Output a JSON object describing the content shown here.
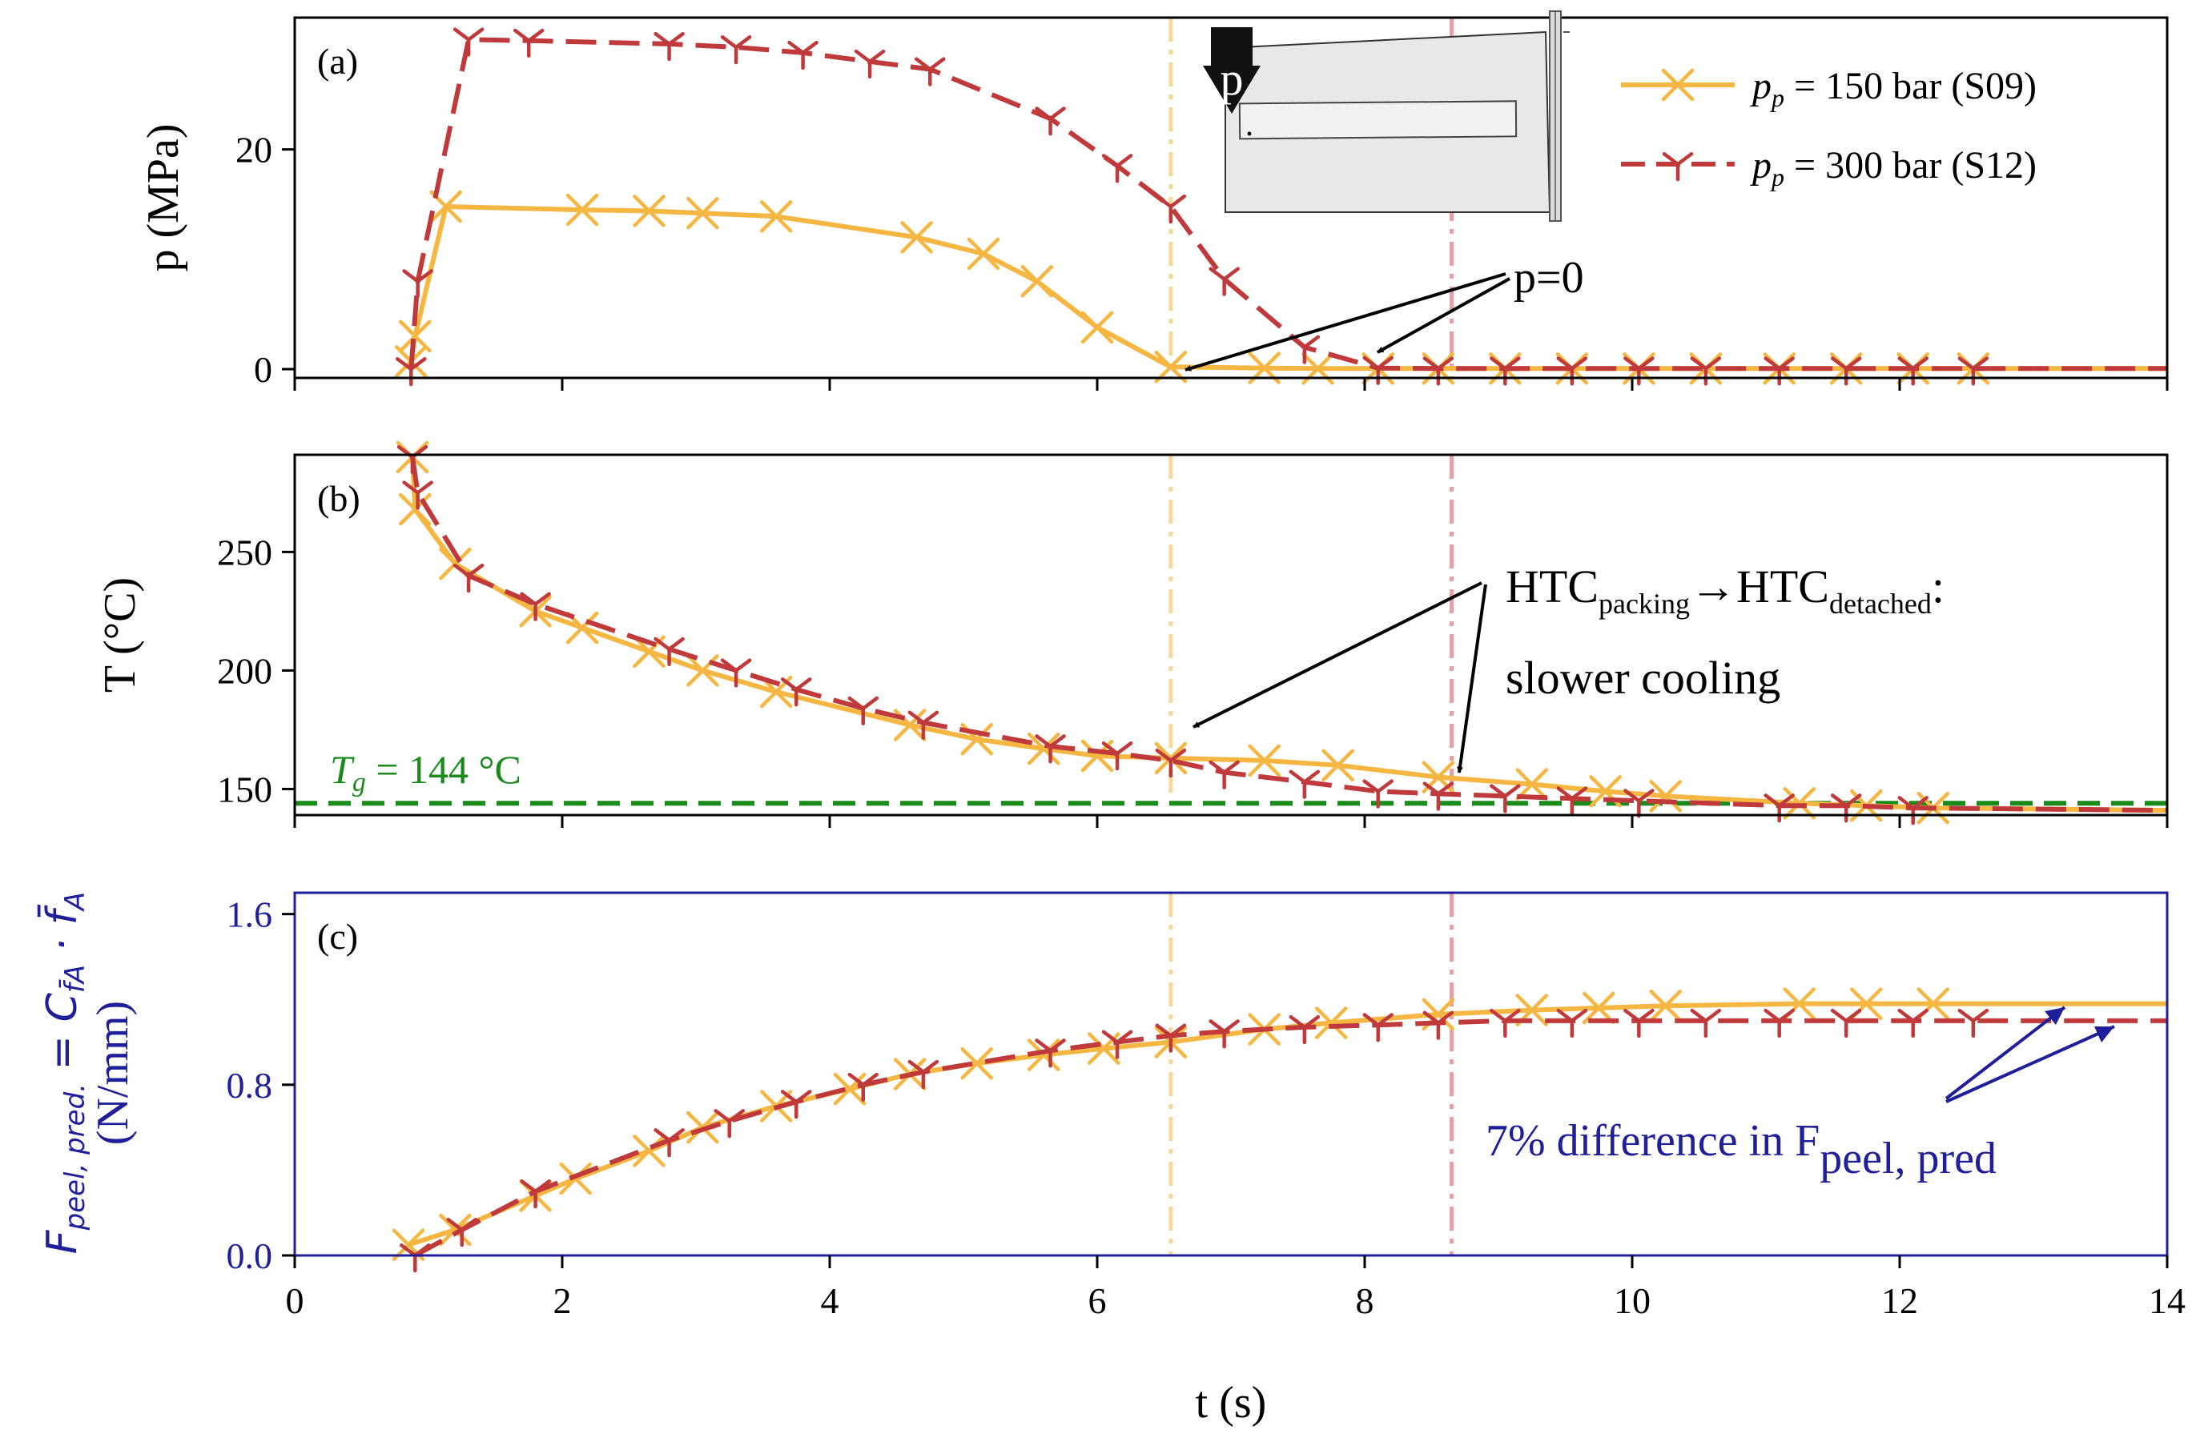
{
  "colors": {
    "s09": "#f5b642",
    "s12": "#c0393b",
    "tg": "#1a8a1a",
    "navy": "#1f1f9c",
    "axis": "#000000",
    "s09_vline": "#f8d79a",
    "s12_vline": "#e6a0a4"
  },
  "chart_data": [
    {
      "type": "line",
      "panel_label": "(a)",
      "ylabel": "p (MPa)",
      "xlabel": "",
      "xlim": [
        0,
        14
      ],
      "ylim": [
        -0.8,
        32
      ],
      "yticks": [
        0,
        20
      ],
      "ytick_labels": [
        "0",
        "20"
      ],
      "xticks": [
        0,
        2,
        4,
        6,
        8,
        10,
        12,
        14
      ],
      "legend": {
        "position": "top-right",
        "items": [
          {
            "series": "S09",
            "prefix": "p",
            "sub": "p",
            "text": " = 150 bar (S09)"
          },
          {
            "series": "S12",
            "prefix": "p",
            "sub": "p",
            "text": " = 300 bar (S12)"
          }
        ]
      },
      "inset": {
        "label": "p"
      },
      "annotation": {
        "text": "p=0",
        "targets": [
          [
            6.6,
            0
          ],
          [
            8.0,
            0
          ]
        ]
      },
      "series": [
        {
          "name": "p_p = 150 bar (S09)",
          "key": "S09",
          "style": "solid",
          "marker": "x",
          "x": [
            0.87,
            0.9,
            1.13,
            2.15,
            2.65,
            3.05,
            3.6,
            4.65,
            5.15,
            5.55,
            6.0,
            6.55,
            7.25,
            7.65,
            8.1,
            8.55,
            9.05,
            9.55,
            10.05,
            10.55,
            11.1,
            11.6,
            12.1,
            12.55,
            14.0
          ],
          "y": [
            0.7,
            3.0,
            14.8,
            14.5,
            14.4,
            14.2,
            13.9,
            12.0,
            10.5,
            8.0,
            3.8,
            0.2,
            0.1,
            0.05,
            0.05,
            0.05,
            0.05,
            0.05,
            0.05,
            0.05,
            0.05,
            0.05,
            0.05,
            0.05,
            0.05
          ],
          "markers_x": [
            0.87,
            0.9,
            1.13,
            2.15,
            2.65,
            3.05,
            3.6,
            4.65,
            5.15,
            5.55,
            6.0,
            6.55,
            7.25,
            7.65,
            8.1,
            8.55,
            9.05,
            9.55,
            10.05,
            10.55,
            11.1,
            11.6,
            12.1,
            12.55
          ]
        },
        {
          "name": "p_p = 300 bar (S12)",
          "key": "S12",
          "style": "dashed",
          "marker": "tri_down",
          "x": [
            0.87,
            0.92,
            1.3,
            1.75,
            2.8,
            3.3,
            3.8,
            4.3,
            4.75,
            5.65,
            6.15,
            6.55,
            6.95,
            7.55,
            8.1,
            8.55,
            9.05,
            9.55,
            10.05,
            10.55,
            11.1,
            11.6,
            12.1,
            12.55,
            14.0
          ],
          "y": [
            0.0,
            8.0,
            30.0,
            29.9,
            29.6,
            29.3,
            28.8,
            28.0,
            27.3,
            22.8,
            18.5,
            14.8,
            8.2,
            2.0,
            0.1,
            0.05,
            0.05,
            0.05,
            0.05,
            0.05,
            0.05,
            0.05,
            0.05,
            0.05,
            0.05
          ],
          "markers_x": [
            0.87,
            0.92,
            1.3,
            1.75,
            2.8,
            3.3,
            3.8,
            4.3,
            4.75,
            5.65,
            6.15,
            6.55,
            6.95,
            7.55,
            8.1,
            8.55,
            9.05,
            9.55,
            10.05,
            10.55,
            11.1,
            11.6,
            12.1,
            12.55
          ]
        }
      ]
    },
    {
      "type": "line",
      "panel_label": "(b)",
      "ylabel": "T (°C)",
      "xlabel": "",
      "xlim": [
        0,
        14
      ],
      "ylim": [
        139,
        291
      ],
      "yticks": [
        150,
        200,
        250
      ],
      "ytick_labels": [
        "150",
        "200",
        "250"
      ],
      "xticks": [
        0,
        2,
        4,
        6,
        8,
        10,
        12,
        14
      ],
      "reference_line": {
        "y": 144,
        "label_prefix": "T",
        "label_sub": "g",
        "label_text": " = 144 °C"
      },
      "annotation": {
        "text_main": "HTC",
        "text_sub1": "packing",
        "arrow": "→",
        "text_main2": "HTC",
        "text_sub2": "detached",
        "text_colon": ":",
        "text_line2": "slower cooling",
        "targets": [
          [
            6.65,
            163
          ],
          [
            8.7,
            153
          ]
        ]
      },
      "series": [
        {
          "name": "S09",
          "key": "S09",
          "style": "solid",
          "marker": "x",
          "x": [
            0.88,
            0.9,
            1.2,
            1.8,
            2.15,
            2.65,
            3.05,
            3.6,
            4.6,
            5.1,
            5.6,
            6.0,
            6.55,
            7.25,
            7.8,
            8.55,
            9.25,
            9.8,
            10.25,
            11.25,
            11.75,
            12.25,
            14.0
          ],
          "y": [
            290,
            268,
            245,
            225,
            218,
            208,
            200,
            191,
            177,
            171,
            167,
            164,
            163,
            162,
            160,
            155,
            152,
            149,
            147,
            144,
            143,
            142,
            141
          ],
          "markers_x": [
            0.88,
            0.9,
            1.2,
            1.8,
            2.15,
            2.65,
            3.05,
            3.6,
            4.6,
            5.1,
            5.6,
            6.0,
            6.55,
            7.25,
            7.8,
            8.55,
            9.25,
            9.8,
            10.25,
            11.25,
            11.75,
            12.25
          ]
        },
        {
          "name": "S12",
          "key": "S12",
          "style": "dashed",
          "marker": "tri_down",
          "x": [
            0.88,
            0.92,
            1.3,
            1.8,
            2.8,
            3.3,
            3.75,
            4.25,
            4.7,
            5.65,
            6.15,
            6.55,
            6.95,
            7.55,
            8.1,
            8.55,
            9.05,
            9.55,
            10.05,
            11.1,
            11.6,
            12.1,
            14.0
          ],
          "y": [
            290,
            275,
            240,
            228,
            209,
            200,
            192,
            184,
            178,
            168,
            165,
            162,
            157,
            153,
            149,
            148,
            147,
            146,
            145,
            143,
            143,
            142,
            141
          ],
          "markers_x": [
            0.88,
            0.92,
            1.3,
            1.8,
            2.8,
            3.3,
            3.75,
            4.25,
            4.7,
            5.65,
            6.15,
            6.55,
            6.95,
            7.55,
            8.1,
            8.55,
            9.05,
            9.55,
            10.05,
            11.1,
            11.6,
            12.1
          ]
        }
      ]
    },
    {
      "type": "line",
      "panel_label": "(c)",
      "ylabel_line1": "F",
      "ylabel_line1_sub": "peel, pred.",
      "ylabel_line1_rest": " = C",
      "ylabel_line1_sub2": "f̄A",
      "ylabel_line1_tail": " · f̄",
      "ylabel_line1_tail_sub": "A",
      "ylabel_line2": "(N/mm)",
      "xlabel": "t (s)",
      "xlim": [
        0,
        14
      ],
      "ylim": [
        0,
        1.7
      ],
      "yticks": [
        0.0,
        0.8,
        1.6
      ],
      "ytick_labels": [
        "0.0",
        "0.8",
        "1.6"
      ],
      "xticks": [
        0,
        2,
        4,
        6,
        8,
        10,
        12,
        14
      ],
      "xtick_labels": [
        "0",
        "2",
        "4",
        "6",
        "8",
        "10",
        "12",
        "14"
      ],
      "annotation": {
        "text": "7% difference in F",
        "sub": "peel, pred",
        "targets": [
          [
            13.3,
            1.18
          ],
          [
            13.6,
            1.1
          ]
        ]
      },
      "series": [
        {
          "name": "S09",
          "key": "S09",
          "style": "solid",
          "marker": "x",
          "x": [
            0.85,
            1.2,
            1.8,
            2.1,
            2.65,
            3.05,
            3.6,
            4.15,
            4.6,
            5.1,
            5.6,
            6.05,
            6.55,
            7.25,
            7.75,
            8.55,
            9.25,
            9.75,
            10.25,
            11.25,
            11.75,
            12.25,
            14.0
          ],
          "y": [
            0.05,
            0.12,
            0.28,
            0.36,
            0.49,
            0.6,
            0.7,
            0.78,
            0.85,
            0.9,
            0.94,
            0.97,
            1.0,
            1.06,
            1.09,
            1.13,
            1.15,
            1.16,
            1.17,
            1.18,
            1.18,
            1.18,
            1.18
          ],
          "markers_x": [
            0.85,
            1.2,
            1.8,
            2.1,
            2.65,
            3.05,
            3.6,
            4.15,
            4.6,
            5.1,
            5.6,
            6.05,
            6.55,
            7.25,
            7.75,
            8.55,
            9.25,
            9.75,
            10.25,
            11.25,
            11.75,
            12.25
          ]
        },
        {
          "name": "S12",
          "key": "S12",
          "style": "dashed",
          "marker": "tri_down",
          "x": [
            0.9,
            1.25,
            1.8,
            2.8,
            3.25,
            3.75,
            4.25,
            4.7,
            5.65,
            6.15,
            6.55,
            6.95,
            7.55,
            8.1,
            8.55,
            9.05,
            9.55,
            10.05,
            10.55,
            11.1,
            11.6,
            12.1,
            12.55,
            14.0
          ],
          "y": [
            0.0,
            0.12,
            0.3,
            0.54,
            0.63,
            0.72,
            0.8,
            0.86,
            0.96,
            1.0,
            1.03,
            1.05,
            1.07,
            1.08,
            1.09,
            1.1,
            1.1,
            1.1,
            1.1,
            1.1,
            1.1,
            1.1,
            1.1,
            1.1
          ],
          "markers_x": [
            0.9,
            1.25,
            1.8,
            2.8,
            3.25,
            3.75,
            4.25,
            4.7,
            5.65,
            6.15,
            6.55,
            6.95,
            7.55,
            8.1,
            8.55,
            9.05,
            9.55,
            10.05,
            10.55,
            11.1,
            11.6,
            12.1,
            12.55
          ]
        }
      ]
    }
  ],
  "vertical_lines": [
    {
      "series": "S09",
      "t": 6.55
    },
    {
      "series": "S12",
      "t": 8.65
    }
  ]
}
